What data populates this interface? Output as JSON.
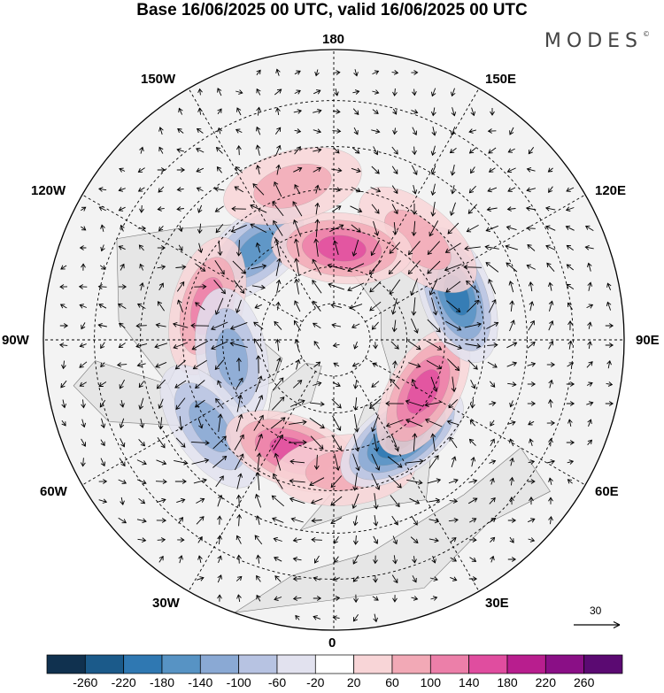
{
  "title": "Base 16/06/2025 00 UTC, valid 16/06/2025 00 UTC",
  "brand": "MODES",
  "brand_mark": "©",
  "meridian_labels": {
    "top": "180",
    "bottom": "0",
    "left": "90W",
    "right": "90E",
    "upper_left_1": "150W",
    "upper_left_2": "120W",
    "upper_right_1": "150E",
    "upper_right_2": "120E",
    "lower_left_1": "60W",
    "lower_left_2": "30W",
    "lower_right_1": "60E",
    "lower_right_2": "30E"
  },
  "reference_vector": {
    "label": "30"
  },
  "colorbar": {
    "labels": [
      "-260",
      "-220",
      "-180",
      "-140",
      "-100",
      "-60",
      "-20",
      "20",
      "60",
      "100",
      "140",
      "180",
      "220",
      "260"
    ],
    "colors": [
      "#10314f",
      "#1b5a8a",
      "#2f78b2",
      "#5793c4",
      "#8aa9d4",
      "#b7c3e2",
      "#e2e2ef",
      "#ffffff",
      "#f8d5d7",
      "#f2a9b6",
      "#ec7fa9",
      "#e04d9f",
      "#b81e8e",
      "#8a0f86",
      "#5b0a72"
    ]
  },
  "palette": {
    "land": "#eeeeee",
    "ocean": "#ffffff",
    "grid": "#000000"
  },
  "anomalies": [
    {
      "lon": -140,
      "lat": 58,
      "value": -130
    },
    {
      "lon": -105,
      "lat": 55,
      "value": 110
    },
    {
      "lon": -80,
      "lat": 62,
      "value": -90
    },
    {
      "lon": -55,
      "lat": 50,
      "value": -110
    },
    {
      "lon": -20,
      "lat": 58,
      "value": 150
    },
    {
      "lon": 5,
      "lat": 55,
      "value": 60
    },
    {
      "lon": 35,
      "lat": 58,
      "value": -200
    },
    {
      "lon": 60,
      "lat": 62,
      "value": 130
    },
    {
      "lon": 110,
      "lat": 55,
      "value": -160
    },
    {
      "lon": 140,
      "lat": 55,
      "value": 50
    },
    {
      "lon": 175,
      "lat": 65,
      "value": 120
    },
    {
      "lon": -165,
      "lat": 48,
      "value": 40
    }
  ]
}
